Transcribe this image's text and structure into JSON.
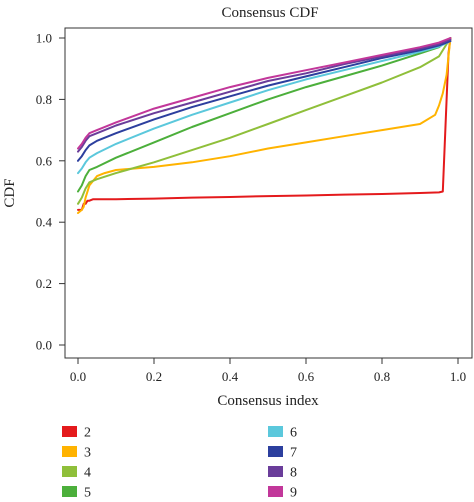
{
  "chart_data": {
    "type": "line",
    "title": "Consensus CDF",
    "xlabel": "Consensus index",
    "ylabel": "CDF",
    "xlim": [
      0,
      1
    ],
    "ylim": [
      0,
      1
    ],
    "xticks": [
      0.0,
      0.2,
      0.4,
      0.6,
      0.8,
      1.0
    ],
    "xtick_labels": [
      "0.0",
      "0.2",
      "0.4",
      "0.6",
      "0.8",
      "1.0"
    ],
    "yticks": [
      0.0,
      0.2,
      0.4,
      0.6,
      0.8,
      1.0
    ],
    "ytick_labels": [
      "0.0",
      "0.2",
      "0.4",
      "0.6",
      "0.8",
      "1.0"
    ],
    "grid": false,
    "legend_position": "bottom",
    "series": [
      {
        "name": "2",
        "color": "#e41a1c",
        "x": [
          0.0,
          0.01,
          0.015,
          0.02,
          0.025,
          0.03,
          0.04,
          0.1,
          0.2,
          0.3,
          0.4,
          0.5,
          0.6,
          0.7,
          0.8,
          0.9,
          0.95,
          0.96,
          0.965,
          0.97,
          0.975,
          0.98
        ],
        "y": [
          0.44,
          0.44,
          0.46,
          0.46,
          0.47,
          0.47,
          0.475,
          0.475,
          0.477,
          0.48,
          0.482,
          0.485,
          0.487,
          0.49,
          0.492,
          0.495,
          0.497,
          0.5,
          0.65,
          0.8,
          0.95,
          1.0
        ]
      },
      {
        "name": "3",
        "color": "#ffb300",
        "x": [
          0.0,
          0.01,
          0.015,
          0.02,
          0.03,
          0.05,
          0.07,
          0.1,
          0.2,
          0.3,
          0.4,
          0.5,
          0.6,
          0.7,
          0.8,
          0.9,
          0.94,
          0.95,
          0.96,
          0.97,
          0.98
        ],
        "y": [
          0.43,
          0.44,
          0.45,
          0.48,
          0.52,
          0.55,
          0.56,
          0.57,
          0.58,
          0.595,
          0.615,
          0.64,
          0.66,
          0.68,
          0.7,
          0.72,
          0.75,
          0.78,
          0.82,
          0.88,
          1.0
        ]
      },
      {
        "name": "4",
        "color": "#8fbf3a",
        "x": [
          0.0,
          0.01,
          0.02,
          0.03,
          0.05,
          0.1,
          0.2,
          0.3,
          0.4,
          0.5,
          0.6,
          0.7,
          0.8,
          0.9,
          0.95,
          0.98
        ],
        "y": [
          0.46,
          0.48,
          0.51,
          0.53,
          0.54,
          0.56,
          0.595,
          0.635,
          0.675,
          0.72,
          0.765,
          0.81,
          0.855,
          0.905,
          0.94,
          1.0
        ]
      },
      {
        "name": "5",
        "color": "#4caf3b",
        "x": [
          0.0,
          0.01,
          0.02,
          0.03,
          0.05,
          0.1,
          0.2,
          0.3,
          0.4,
          0.5,
          0.6,
          0.7,
          0.8,
          0.9,
          0.95,
          0.98
        ],
        "y": [
          0.5,
          0.52,
          0.55,
          0.57,
          0.58,
          0.61,
          0.66,
          0.71,
          0.755,
          0.8,
          0.84,
          0.875,
          0.91,
          0.95,
          0.97,
          1.0
        ]
      },
      {
        "name": "6",
        "color": "#5bc8dc",
        "x": [
          0.0,
          0.01,
          0.02,
          0.03,
          0.05,
          0.1,
          0.2,
          0.3,
          0.4,
          0.5,
          0.6,
          0.7,
          0.8,
          0.9,
          0.95,
          0.98
        ],
        "y": [
          0.56,
          0.575,
          0.595,
          0.61,
          0.625,
          0.655,
          0.705,
          0.75,
          0.79,
          0.83,
          0.865,
          0.895,
          0.925,
          0.955,
          0.972,
          0.99
        ]
      },
      {
        "name": "7",
        "color": "#2c3f9e",
        "x": [
          0.0,
          0.01,
          0.02,
          0.03,
          0.05,
          0.1,
          0.2,
          0.3,
          0.4,
          0.5,
          0.6,
          0.7,
          0.8,
          0.9,
          0.95,
          0.98
        ],
        "y": [
          0.6,
          0.615,
          0.635,
          0.65,
          0.665,
          0.69,
          0.735,
          0.775,
          0.81,
          0.845,
          0.875,
          0.905,
          0.935,
          0.96,
          0.976,
          0.99
        ]
      },
      {
        "name": "8",
        "color": "#6a3d9a",
        "x": [
          0.0,
          0.01,
          0.02,
          0.03,
          0.05,
          0.1,
          0.2,
          0.3,
          0.4,
          0.5,
          0.6,
          0.7,
          0.8,
          0.9,
          0.95,
          0.98
        ],
        "y": [
          0.63,
          0.645,
          0.665,
          0.68,
          0.69,
          0.715,
          0.755,
          0.79,
          0.825,
          0.86,
          0.885,
          0.915,
          0.94,
          0.965,
          0.98,
          0.995
        ]
      },
      {
        "name": "9",
        "color": "#c2379a",
        "x": [
          0.0,
          0.01,
          0.02,
          0.03,
          0.05,
          0.1,
          0.2,
          0.3,
          0.4,
          0.5,
          0.6,
          0.7,
          0.8,
          0.9,
          0.95,
          0.98
        ],
        "y": [
          0.64,
          0.655,
          0.675,
          0.69,
          0.7,
          0.725,
          0.77,
          0.805,
          0.84,
          0.87,
          0.895,
          0.92,
          0.945,
          0.97,
          0.985,
          1.0
        ]
      }
    ]
  }
}
